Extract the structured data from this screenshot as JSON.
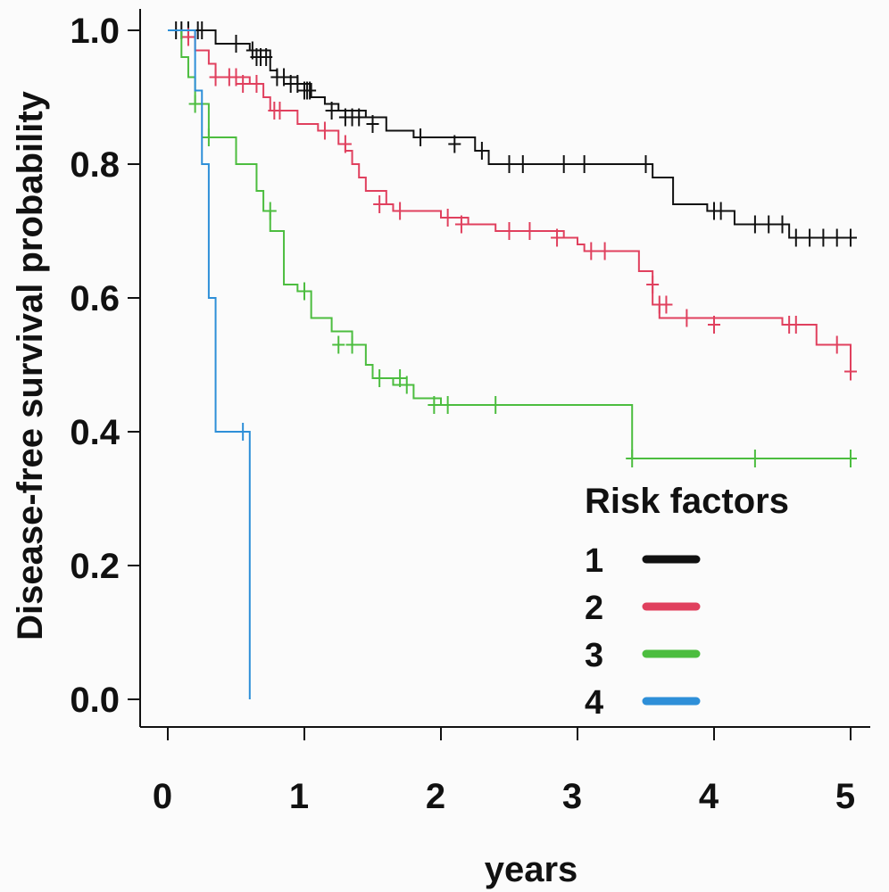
{
  "chart_data": {
    "type": "line",
    "title": "",
    "xlabel": "years",
    "ylabel": "Disease-free survival probability",
    "xlim": [
      0,
      5
    ],
    "ylim": [
      0,
      1
    ],
    "x_ticks": [
      0,
      1,
      2,
      3,
      4,
      5
    ],
    "x_tick_labels": [
      "0",
      "1",
      "2",
      "3",
      "4",
      "5"
    ],
    "y_ticks": [
      0,
      0.2,
      0.4,
      0.6,
      0.8,
      1
    ],
    "y_tick_labels": [
      "0.0",
      "0.2",
      "0.4",
      "0.6",
      "0.8",
      "1.0"
    ],
    "grid": false,
    "legend": {
      "title": "Risk factors",
      "position": "bottom-right"
    },
    "series": [
      {
        "name": "1",
        "color": "#111111",
        "steps": [
          [
            0,
            1.0
          ],
          [
            0.35,
            0.98
          ],
          [
            0.6,
            0.97
          ],
          [
            0.75,
            0.94
          ],
          [
            0.8,
            0.93
          ],
          [
            0.95,
            0.92
          ],
          [
            1.05,
            0.9
          ],
          [
            1.15,
            0.89
          ],
          [
            1.25,
            0.88
          ],
          [
            1.45,
            0.87
          ],
          [
            1.6,
            0.85
          ],
          [
            1.8,
            0.84
          ],
          [
            2.25,
            0.82
          ],
          [
            2.35,
            0.8
          ],
          [
            3.4,
            0.8
          ],
          [
            3.55,
            0.78
          ],
          [
            3.7,
            0.74
          ],
          [
            3.95,
            0.73
          ],
          [
            4.15,
            0.71
          ],
          [
            4.55,
            0.69
          ],
          [
            5.0,
            0.69
          ]
        ],
        "censored": [
          [
            0.06,
            1.0
          ],
          [
            0.1,
            1.0
          ],
          [
            0.15,
            1.0
          ],
          [
            0.22,
            1.0
          ],
          [
            0.25,
            1.0
          ],
          [
            0.5,
            0.98
          ],
          [
            0.62,
            0.97
          ],
          [
            0.65,
            0.96
          ],
          [
            0.68,
            0.96
          ],
          [
            0.72,
            0.96
          ],
          [
            0.8,
            0.93
          ],
          [
            0.85,
            0.93
          ],
          [
            0.9,
            0.92
          ],
          [
            0.95,
            0.92
          ],
          [
            1.0,
            0.91
          ],
          [
            1.02,
            0.91
          ],
          [
            1.04,
            0.91
          ],
          [
            1.2,
            0.88
          ],
          [
            1.3,
            0.87
          ],
          [
            1.35,
            0.87
          ],
          [
            1.4,
            0.87
          ],
          [
            1.5,
            0.86
          ],
          [
            1.85,
            0.84
          ],
          [
            2.1,
            0.83
          ],
          [
            2.3,
            0.82
          ],
          [
            2.5,
            0.8
          ],
          [
            2.6,
            0.8
          ],
          [
            2.9,
            0.8
          ],
          [
            3.05,
            0.8
          ],
          [
            3.5,
            0.8
          ],
          [
            4.0,
            0.73
          ],
          [
            4.05,
            0.73
          ],
          [
            4.3,
            0.71
          ],
          [
            4.4,
            0.71
          ],
          [
            4.5,
            0.71
          ],
          [
            4.6,
            0.69
          ],
          [
            4.7,
            0.69
          ],
          [
            4.8,
            0.69
          ],
          [
            4.9,
            0.69
          ],
          [
            5.0,
            0.69
          ]
        ]
      },
      {
        "name": "2",
        "color": "#e0405e",
        "steps": [
          [
            0,
            1.0
          ],
          [
            0.2,
            0.97
          ],
          [
            0.3,
            0.95
          ],
          [
            0.35,
            0.93
          ],
          [
            0.6,
            0.92
          ],
          [
            0.7,
            0.9
          ],
          [
            0.75,
            0.88
          ],
          [
            0.95,
            0.86
          ],
          [
            1.1,
            0.85
          ],
          [
            1.25,
            0.83
          ],
          [
            1.3,
            0.82
          ],
          [
            1.35,
            0.8
          ],
          [
            1.4,
            0.78
          ],
          [
            1.45,
            0.76
          ],
          [
            1.6,
            0.74
          ],
          [
            1.65,
            0.73
          ],
          [
            2.0,
            0.72
          ],
          [
            2.2,
            0.71
          ],
          [
            2.4,
            0.7
          ],
          [
            2.9,
            0.69
          ],
          [
            3.0,
            0.68
          ],
          [
            3.05,
            0.67
          ],
          [
            3.45,
            0.64
          ],
          [
            3.55,
            0.59
          ],
          [
            3.6,
            0.57
          ],
          [
            4.5,
            0.56
          ],
          [
            4.75,
            0.53
          ],
          [
            5.0,
            0.49
          ]
        ],
        "censored": [
          [
            0.15,
            0.99
          ],
          [
            0.35,
            0.93
          ],
          [
            0.45,
            0.93
          ],
          [
            0.5,
            0.93
          ],
          [
            0.55,
            0.92
          ],
          [
            0.65,
            0.92
          ],
          [
            0.78,
            0.88
          ],
          [
            0.82,
            0.88
          ],
          [
            1.15,
            0.85
          ],
          [
            1.3,
            0.83
          ],
          [
            1.55,
            0.74
          ],
          [
            1.7,
            0.73
          ],
          [
            2.05,
            0.72
          ],
          [
            2.15,
            0.71
          ],
          [
            2.5,
            0.7
          ],
          [
            2.65,
            0.7
          ],
          [
            2.85,
            0.69
          ],
          [
            3.1,
            0.67
          ],
          [
            3.2,
            0.67
          ],
          [
            3.55,
            0.62
          ],
          [
            3.6,
            0.59
          ],
          [
            3.65,
            0.59
          ],
          [
            3.8,
            0.57
          ],
          [
            4.0,
            0.56
          ],
          [
            4.55,
            0.56
          ],
          [
            4.6,
            0.56
          ],
          [
            4.9,
            0.53
          ],
          [
            5.0,
            0.49
          ]
        ]
      },
      {
        "name": "3",
        "color": "#4cbd3f",
        "steps": [
          [
            0,
            1.0
          ],
          [
            0.1,
            0.96
          ],
          [
            0.15,
            0.93
          ],
          [
            0.2,
            0.89
          ],
          [
            0.3,
            0.84
          ],
          [
            0.5,
            0.8
          ],
          [
            0.65,
            0.76
          ],
          [
            0.7,
            0.73
          ],
          [
            0.75,
            0.7
          ],
          [
            0.85,
            0.62
          ],
          [
            0.95,
            0.61
          ],
          [
            1.05,
            0.57
          ],
          [
            1.2,
            0.55
          ],
          [
            1.35,
            0.53
          ],
          [
            1.45,
            0.5
          ],
          [
            1.5,
            0.48
          ],
          [
            1.65,
            0.47
          ],
          [
            1.8,
            0.45
          ],
          [
            2.0,
            0.44
          ],
          [
            3.35,
            0.44
          ],
          [
            3.4,
            0.36
          ],
          [
            5.0,
            0.36
          ]
        ],
        "censored": [
          [
            0.2,
            0.89
          ],
          [
            0.3,
            0.84
          ],
          [
            0.75,
            0.73
          ],
          [
            1.0,
            0.61
          ],
          [
            1.25,
            0.53
          ],
          [
            1.35,
            0.53
          ],
          [
            1.55,
            0.48
          ],
          [
            1.7,
            0.48
          ],
          [
            1.75,
            0.47
          ],
          [
            1.95,
            0.44
          ],
          [
            2.05,
            0.44
          ],
          [
            2.4,
            0.44
          ],
          [
            3.4,
            0.36
          ],
          [
            4.3,
            0.36
          ],
          [
            5.0,
            0.36
          ]
        ]
      },
      {
        "name": "4",
        "color": "#2e8fd8",
        "steps": [
          [
            0,
            1.0
          ],
          [
            0.2,
            0.91
          ],
          [
            0.25,
            0.8
          ],
          [
            0.3,
            0.6
          ],
          [
            0.35,
            0.4
          ],
          [
            0.55,
            0.4
          ],
          [
            0.6,
            0.0
          ]
        ],
        "censored": [
          [
            0.55,
            0.4
          ]
        ]
      }
    ]
  }
}
